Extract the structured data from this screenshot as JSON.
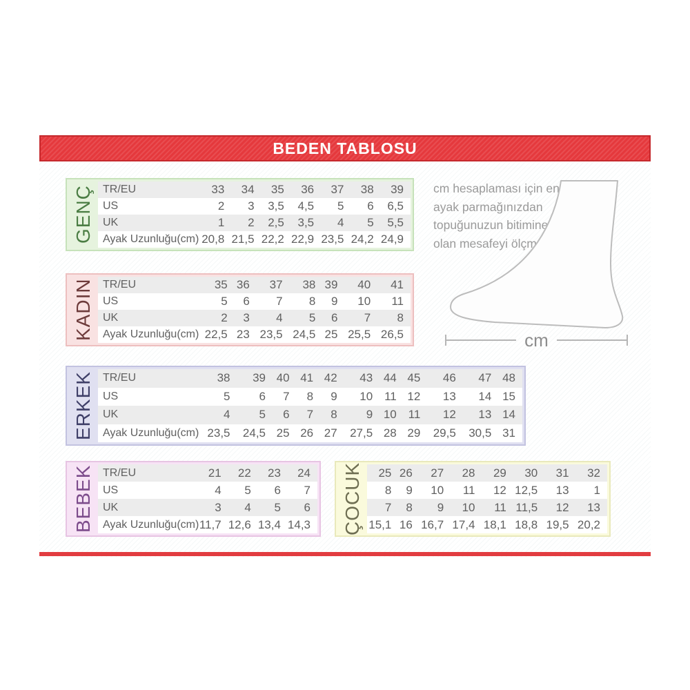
{
  "header": {
    "title": "BEDEN TABLOSU"
  },
  "info": {
    "text": "cm hesaplaması için en uzun ayak parmağınızdan topuğunuzun bitimine kadar olan mesafeyi ölçmelisiniz.",
    "measure_label": "cm"
  },
  "colors": {
    "banner_bg": "#e5393d",
    "banner_border": "#c5282c",
    "banner_text": "#ffffff",
    "bottom_bar": "#e23c40",
    "table_text": "#606060",
    "stripe": "#ececec",
    "info_text": "#9a9a9a",
    "foot_outline": "#bcbcbc"
  },
  "tables": [
    {
      "id": "genc",
      "label": "GENÇ",
      "colors": {
        "bg": "#e6f3de",
        "border": "#c6e2ba",
        "label_text": "#4b7d44"
      },
      "row_labels": [
        "TR/EU",
        "US",
        "UK",
        "Ayak Uzunluğu(cm)"
      ],
      "rows": [
        [
          "33",
          "34",
          "35",
          "36",
          "37",
          "38",
          "39"
        ],
        [
          "2",
          "3",
          "3,5",
          "4,5",
          "5",
          "6",
          "6,5"
        ],
        [
          "1",
          "2",
          "2,5",
          "3,5",
          "4",
          "5",
          "5,5"
        ],
        [
          "20,8",
          "21,5",
          "22,2",
          "22,9",
          "23,5",
          "24,2",
          "24,9"
        ]
      ]
    },
    {
      "id": "kadin",
      "label": "KADIN",
      "colors": {
        "bg": "#f9e2e2",
        "border": "#edbfbf",
        "label_text": "#6d3b3b"
      },
      "row_labels": [
        "TR/EU",
        "US",
        "UK",
        "Ayak Uzunluğu(cm)"
      ],
      "rows": [
        [
          "35",
          "36",
          "37",
          "38",
          "39",
          "40",
          "41"
        ],
        [
          "5",
          "6",
          "7",
          "8",
          "9",
          "10",
          "11"
        ],
        [
          "2",
          "3",
          "4",
          "5",
          "6",
          "7",
          "8"
        ],
        [
          "22,5",
          "23",
          "23,5",
          "24,5",
          "25",
          "25,5",
          "26,5"
        ]
      ]
    },
    {
      "id": "erkek",
      "label": "ERKEK",
      "colors": {
        "bg": "#e0e0f1",
        "border": "#c2c2e0",
        "label_text": "#3f3f68"
      },
      "row_labels": [
        "TR/EU",
        "US",
        "UK",
        "Ayak Uzunluğu(cm)"
      ],
      "rows": [
        [
          "38",
          "39",
          "40",
          "41",
          "42",
          "43",
          "44",
          "45",
          "46",
          "47",
          "48"
        ],
        [
          "5",
          "6",
          "7",
          "8",
          "9",
          "10",
          "11",
          "12",
          "13",
          "14",
          "15"
        ],
        [
          "4",
          "5",
          "6",
          "7",
          "8",
          "9",
          "10",
          "11",
          "12",
          "13",
          "14"
        ],
        [
          "23,5",
          "24,5",
          "25",
          "26",
          "27",
          "27,5",
          "28",
          "29",
          "29,5",
          "30,5",
          "31"
        ]
      ]
    },
    {
      "id": "bebek",
      "label": "BEBEK",
      "colors": {
        "bg": "#f7e3f5",
        "border": "#e7c4e3",
        "label_text": "#7c4b8b"
      },
      "row_labels": [
        "TR/EU",
        "US",
        "UK",
        "Ayak Uzunluğu(cm)"
      ],
      "rows": [
        [
          "21",
          "22",
          "23",
          "24"
        ],
        [
          "4",
          "5",
          "6",
          "7"
        ],
        [
          "3",
          "4",
          "5",
          "6"
        ],
        [
          "11,7",
          "12,6",
          "13,4",
          "14,3"
        ]
      ]
    },
    {
      "id": "cocuk",
      "label": "ÇOCUK",
      "colors": {
        "bg": "#fafadc",
        "border": "#e9e9bb",
        "label_text": "#6e6e52"
      },
      "row_labels": [],
      "rows": [
        [
          "25",
          "26",
          "27",
          "28",
          "29",
          "30",
          "31",
          "32"
        ],
        [
          "8",
          "9",
          "10",
          "11",
          "12",
          "12,5",
          "13",
          "1"
        ],
        [
          "7",
          "8",
          "9",
          "10",
          "11",
          "11,5",
          "12",
          "13"
        ],
        [
          "15,1",
          "16",
          "16,7",
          "17,4",
          "18,1",
          "18,8",
          "19,5",
          "20,2"
        ]
      ]
    }
  ]
}
